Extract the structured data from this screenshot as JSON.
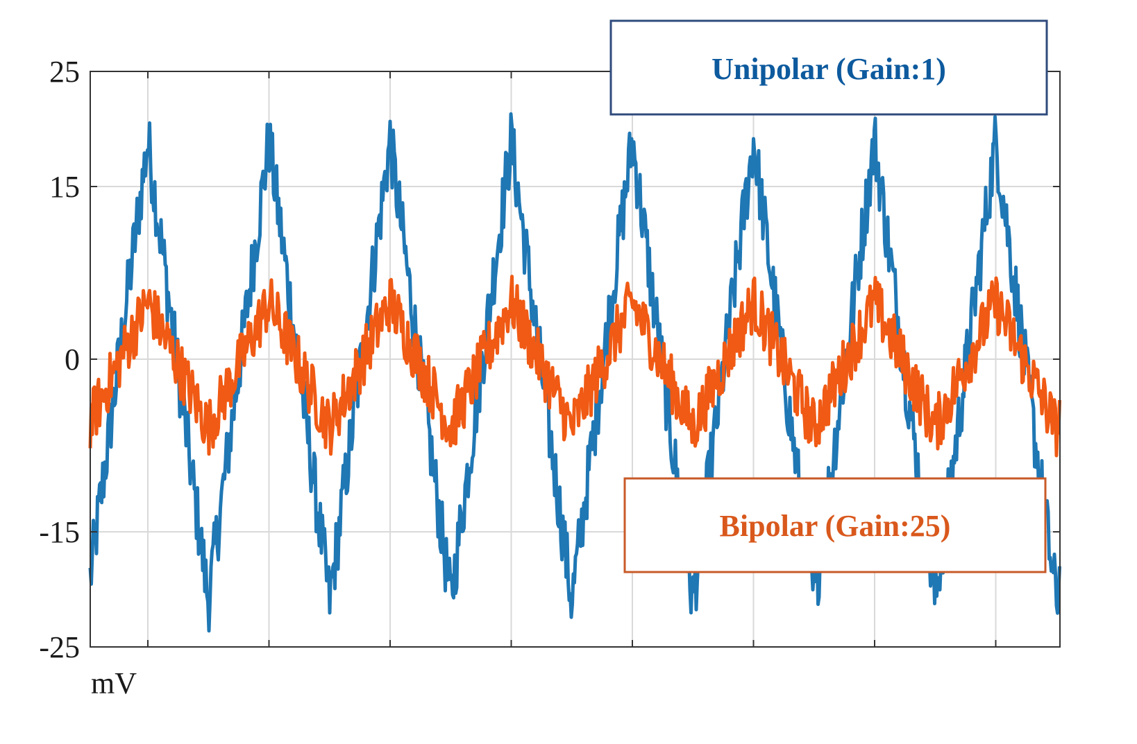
{
  "chart_data": {
    "type": "line",
    "ylabel": "mV",
    "ylim": [
      -25,
      25
    ],
    "y_ticks": [
      "25",
      "15",
      "0",
      "-15",
      "-25"
    ],
    "y_tick_values": [
      25,
      15,
      0,
      -15,
      -25
    ],
    "grid": true,
    "x_gridlines": 8,
    "cycles": 8,
    "series": [
      {
        "name": "Unipolar (Gain:1)",
        "color": "#1f77b4",
        "waveform": "triangle",
        "peak": 19,
        "trough": -21,
        "noise_band": 3,
        "peaks_at_gridlines": [
          1,
          2,
          3,
          4,
          5,
          6,
          7,
          8
        ]
      },
      {
        "name": "Bipolar (Gain:25)",
        "color": "#f05a14",
        "waveform": "triangle",
        "peak": 5,
        "trough": -6,
        "noise_band": 2.5,
        "peaks_at_gridlines": [
          1,
          2,
          3,
          4,
          5,
          6,
          7,
          8
        ]
      }
    ]
  },
  "legend": {
    "unipolar_label": "Unipolar (Gain:1)",
    "bipolar_label": "Bipolar (Gain:25)",
    "unipolar_color": "#0d5a9e",
    "bipolar_color": "#d9581c"
  }
}
